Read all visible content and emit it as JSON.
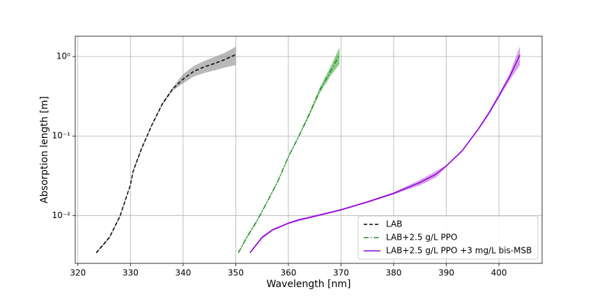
{
  "chart_data": {
    "type": "line",
    "log_y": true,
    "grid": true,
    "legend": "lower right",
    "xlabel": "Wavelength [nm]",
    "ylabel": "Absorption length [m]",
    "xlim": [
      319.5,
      408.2
    ],
    "ylim": [
      0.0025,
      1.8
    ],
    "xticks": [
      320,
      330,
      340,
      350,
      360,
      370,
      380,
      390,
      400
    ],
    "yticks": [
      {
        "value": 0.01,
        "label": "10⁻²"
      },
      {
        "value": 0.1,
        "label": "10⁻¹"
      },
      {
        "value": 1,
        "label": "10⁰"
      }
    ],
    "series": [
      {
        "name": "LAB",
        "color": "#000000",
        "band_color": "#7f7f7f",
        "dash": "dashed",
        "x": [
          323.5,
          326,
          328,
          330,
          330.5,
          332,
          334,
          336,
          338,
          340,
          342,
          344,
          346,
          348,
          350
        ],
        "values": [
          0.0034,
          0.0053,
          0.0098,
          0.0245,
          0.036,
          0.067,
          0.135,
          0.25,
          0.39,
          0.52,
          0.65,
          0.74,
          0.82,
          0.92,
          1.06
        ],
        "lower": [
          0.0033,
          0.0051,
          0.0094,
          0.0235,
          0.034,
          0.064,
          0.13,
          0.24,
          0.37,
          0.46,
          0.56,
          0.62,
          0.67,
          0.73,
          0.78
        ],
        "upper": [
          0.0035,
          0.0055,
          0.0102,
          0.0255,
          0.038,
          0.07,
          0.14,
          0.26,
          0.41,
          0.6,
          0.76,
          0.88,
          0.99,
          1.12,
          1.33
        ]
      },
      {
        "name": "LAB+2.5 g/L PPO",
        "color": "#228b22",
        "band_color": "#2ca02c",
        "dash": "dashdot",
        "x": [
          350.5,
          352,
          354,
          356,
          358,
          360,
          362,
          364,
          366,
          368,
          369.7
        ],
        "values": [
          0.0034,
          0.0052,
          0.0085,
          0.015,
          0.027,
          0.055,
          0.1,
          0.19,
          0.38,
          0.65,
          1.05
        ],
        "lower": [
          0.0033,
          0.005,
          0.0082,
          0.0145,
          0.026,
          0.053,
          0.096,
          0.18,
          0.35,
          0.57,
          0.8
        ],
        "upper": [
          0.0035,
          0.0054,
          0.0088,
          0.0155,
          0.028,
          0.057,
          0.104,
          0.2,
          0.41,
          0.74,
          1.3
        ]
      },
      {
        "name": "LAB+2.5 g/L PPO +3 mg/L bis-MSB",
        "color": "#9400d3",
        "band_color": "#b44ee6",
        "dash": "solid",
        "x": [
          352.7,
          355,
          357,
          360,
          362,
          365,
          370,
          375,
          380,
          385,
          388,
          390,
          393,
          396,
          398,
          400,
          402,
          404
        ],
        "values": [
          0.0034,
          0.0053,
          0.0066,
          0.008,
          0.0088,
          0.0098,
          0.0118,
          0.0148,
          0.019,
          0.026,
          0.033,
          0.042,
          0.065,
          0.12,
          0.19,
          0.32,
          0.55,
          1.05
        ],
        "lower": [
          0.0033,
          0.0051,
          0.0064,
          0.0078,
          0.0085,
          0.0095,
          0.0115,
          0.0144,
          0.0184,
          0.024,
          0.03,
          0.041,
          0.063,
          0.116,
          0.18,
          0.3,
          0.5,
          0.78
        ],
        "upper": [
          0.0035,
          0.0055,
          0.0068,
          0.0082,
          0.0091,
          0.0101,
          0.0121,
          0.0152,
          0.0196,
          0.028,
          0.036,
          0.043,
          0.067,
          0.124,
          0.2,
          0.34,
          0.6,
          1.35
        ]
      }
    ]
  }
}
